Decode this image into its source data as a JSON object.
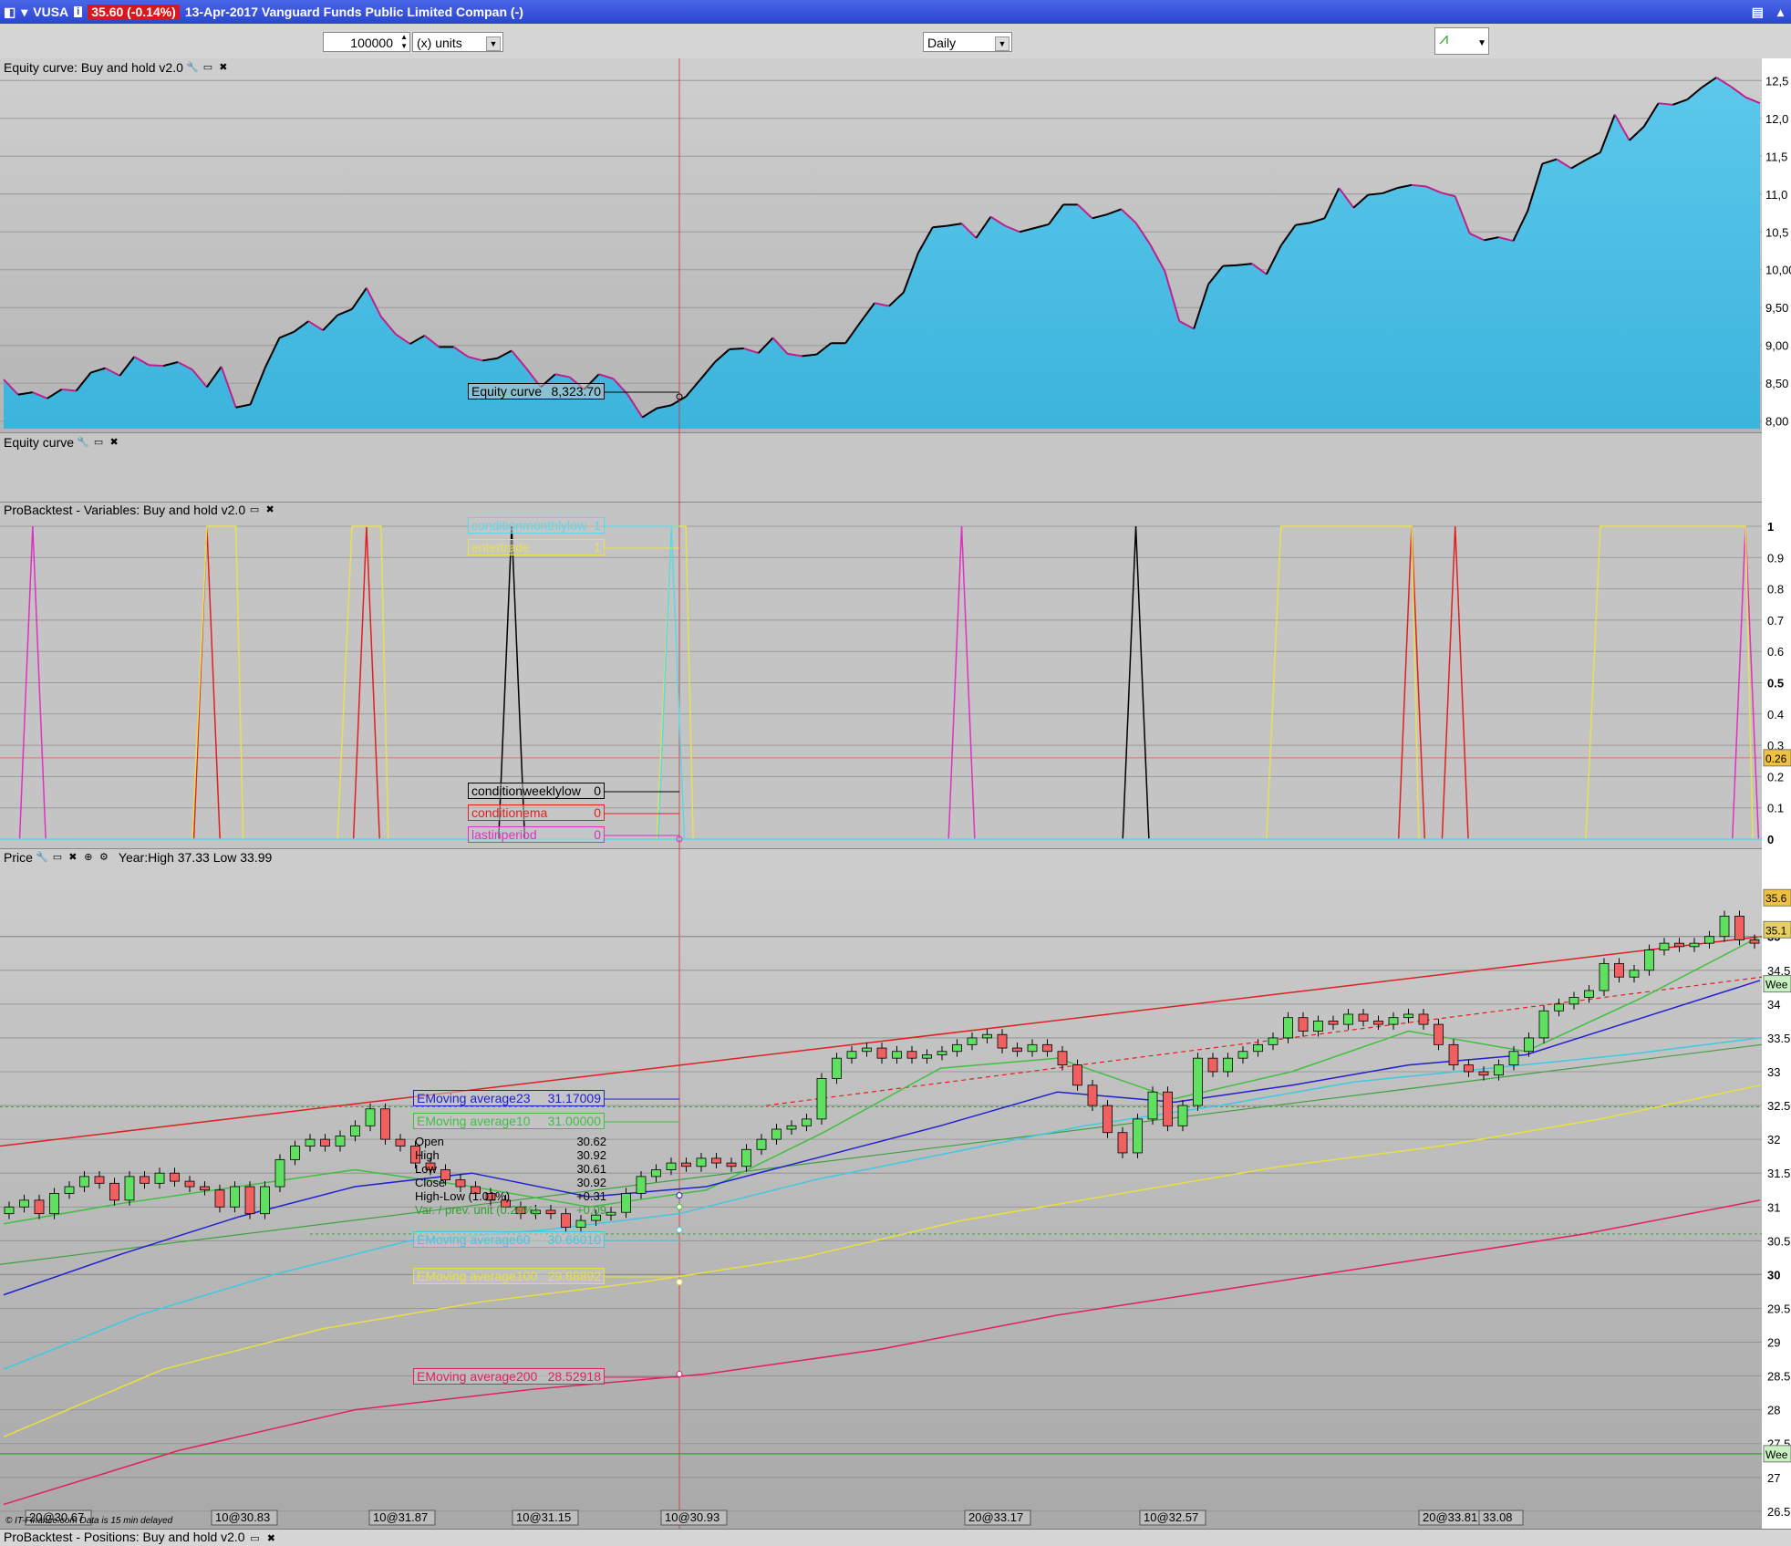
{
  "window": {
    "ticker": "VUSA",
    "price_change": "35.60 (-0.14%)",
    "date_name": "13-Apr-2017 Vanguard Funds Public Limited Compan (-)"
  },
  "toolbar": {
    "quantity": "100000",
    "units": "(x) units",
    "period": "Daily"
  },
  "panels": {
    "equity_title": "Equity curve: Buy and hold v2.0",
    "equity2_title": "Equity curve",
    "vars_title": "ProBacktest - Variables: Buy and hold v2.0",
    "price_title": "Price",
    "price_year": "Year:High 37.33 Low 33.99",
    "positions_title": "ProBacktest - Positions: Buy and hold v2.0",
    "copyright": "© IT-Finance.com  Data is 15 min delayed"
  },
  "labels": {
    "equity_value": {
      "name": "Equity curve",
      "value": "8,323.70"
    },
    "vars": [
      {
        "name": "conditionmonthlylow",
        "value": "1",
        "color": "#5ad8e8"
      },
      {
        "name": "entertrade",
        "value": "1",
        "color": "#e8e050"
      },
      {
        "name": "conditionweeklylow",
        "value": "0",
        "color": "#000000"
      },
      {
        "name": "conditionema",
        "value": "0",
        "color": "#e02020"
      },
      {
        "name": "lastinperiod",
        "value": "0",
        "color": "#e030c0"
      }
    ],
    "emas": [
      {
        "name": "EMoving average23",
        "value": "31.17009",
        "color": "#2020d0"
      },
      {
        "name": "EMoving average10",
        "value": "31.00000",
        "color": "#40c040"
      },
      {
        "name": "EMoving average60",
        "value": "30.66010",
        "color": "#40c8e0"
      },
      {
        "name": "EMoving average100",
        "value": "29.88892",
        "color": "#e8e040"
      },
      {
        "name": "EMoving average200",
        "value": "28.52918",
        "color": "#e02060"
      }
    ],
    "ohlc": [
      {
        "k": "Open",
        "v": "30.62"
      },
      {
        "k": "High",
        "v": "30.92"
      },
      {
        "k": "Low",
        "v": "30.61"
      },
      {
        "k": "Close",
        "v": "30.92"
      },
      {
        "k": "High-Low (1.01%)",
        "v": "+0.31"
      },
      {
        "k": "Var. / prev. unit (0.29%)",
        "v": "+0.09"
      }
    ],
    "price_axis_tags": [
      "35.6",
      "35.1",
      "Wee",
      "Wee"
    ],
    "var_axis_tag": "0.26"
  },
  "colors": {
    "equity_fill_top": "#5cc8ec",
    "equity_fill_bottom": "#3cb4dc",
    "equity_line": "#000000",
    "up_candle": "#60e060",
    "down_candle": "#f06060",
    "channel": "#e02020"
  },
  "chart_data": [
    {
      "type": "area",
      "name": "Equity curve",
      "y_ticks": [
        "12,5",
        "12,0",
        "11,5",
        "11,0",
        "10,5",
        "10,00",
        "9,50",
        "9,00",
        "8,50",
        "8,00"
      ],
      "ylim": [
        7900,
        12600
      ],
      "values": [
        8550,
        8350,
        8380,
        8300,
        8420,
        8400,
        8640,
        8700,
        8600,
        8850,
        8740,
        8730,
        8780,
        8680,
        8450,
        8720,
        8180,
        8220,
        8700,
        9100,
        9180,
        9320,
        9200,
        9400,
        9480,
        9760,
        9380,
        9150,
        9020,
        9130,
        8980,
        8980,
        8850,
        8800,
        8830,
        8930,
        8700,
        8450,
        8620,
        8580,
        8420,
        8620,
        8560,
        8350,
        8050,
        8170,
        8210,
        8323.7,
        8550,
        8780,
        8950,
        8960,
        8900,
        9100,
        8890,
        8860,
        8880,
        9030,
        9030,
        9300,
        9560,
        9520,
        9700,
        10220,
        10560,
        10580,
        10610,
        10420,
        10700,
        10580,
        10500,
        10550,
        10600,
        10860,
        10860,
        10680,
        10730,
        10800,
        10620,
        10330,
        9980,
        9320,
        9220,
        9810,
        10050,
        10060,
        10080,
        9940,
        10320,
        10590,
        10620,
        10680,
        11080,
        10820,
        10990,
        11010,
        11080,
        11120,
        11100,
        11020,
        10970,
        10480,
        10390,
        10430,
        10380,
        10780,
        11400,
        11460,
        11340,
        11450,
        11550,
        12050,
        11710,
        11890,
        12200,
        12180,
        12250,
        12410,
        12540,
        12420,
        12280,
        12200
      ]
    },
    {
      "type": "line",
      "name": "ProBacktest Variables",
      "y_ticks": [
        "1",
        "0.9",
        "0.8",
        "0.7",
        "0.6",
        "0.5",
        "0.4",
        "0.3",
        "0.2",
        "0.1",
        "0"
      ],
      "ylim": [
        0,
        1
      ],
      "series": [
        {
          "name": "lastinperiod",
          "spikes": [
            2,
            66,
            120
          ]
        },
        {
          "name": "conditionema",
          "spikes": [
            14,
            25,
            97,
            100
          ]
        },
        {
          "name": "conditionweeklylow",
          "spikes": [
            35,
            78
          ]
        },
        {
          "name": "entertrade",
          "on_ranges": [
            [
              14,
              16
            ],
            [
              24,
              26
            ],
            [
              46,
              47
            ],
            [
              88,
              97
            ],
            [
              110,
              120
            ]
          ]
        },
        {
          "name": "conditionmonthlylow",
          "spikes": [
            46
          ]
        }
      ]
    },
    {
      "type": "candlestick",
      "name": "Price",
      "y_ticks": [
        "35",
        "34.5",
        "34",
        "33.5",
        "33",
        "32.5",
        "32",
        "31.5",
        "31",
        "30.5",
        "30",
        "29.5",
        "29",
        "28.5",
        "28",
        "27.5",
        "27",
        "26.5"
      ],
      "ylim": [
        26.35,
        35.9
      ],
      "x_labels": [
        "20@30.67",
        "10@30.83",
        "10@31.87",
        "10@31.15",
        "10@30.93",
        "20@33.17",
        "10@32.57",
        "20@33.81",
        "33.08"
      ],
      "closes": [
        31.0,
        31.1,
        30.9,
        31.2,
        31.3,
        31.45,
        31.35,
        31.1,
        31.45,
        31.35,
        31.5,
        31.38,
        31.3,
        31.25,
        31.0,
        31.3,
        30.9,
        31.3,
        31.7,
        31.9,
        32.0,
        31.9,
        32.05,
        32.2,
        32.45,
        32.0,
        31.9,
        31.65,
        31.55,
        31.4,
        31.3,
        31.2,
        31.1,
        31.0,
        30.9,
        30.95,
        30.9,
        30.7,
        30.8,
        30.88,
        30.92,
        31.2,
        31.45,
        31.55,
        31.65,
        31.6,
        31.72,
        31.65,
        31.6,
        31.85,
        32.0,
        32.15,
        32.2,
        32.3,
        32.9,
        33.2,
        33.3,
        33.35,
        33.2,
        33.3,
        33.2,
        33.25,
        33.3,
        33.4,
        33.5,
        33.55,
        33.35,
        33.3,
        33.4,
        33.3,
        33.1,
        32.8,
        32.5,
        32.1,
        31.8,
        32.3,
        32.7,
        32.2,
        32.5,
        33.2,
        33.0,
        33.2,
        33.3,
        33.4,
        33.5,
        33.8,
        33.6,
        33.75,
        33.7,
        33.85,
        33.75,
        33.7,
        33.8,
        33.85,
        33.7,
        33.4,
        33.1,
        33.0,
        32.95,
        33.1,
        33.3,
        33.5,
        33.9,
        34.0,
        34.1,
        34.2,
        34.6,
        34.4,
        34.5,
        34.8,
        34.9,
        34.85,
        34.9,
        35.0,
        35.3,
        34.95,
        34.9
      ],
      "emas": [
        {
          "name": "EMoving average10",
          "values": [
            30.75,
            31.05,
            31.3,
            31.55,
            31.3,
            31.0,
            31.25,
            32.1,
            33.05,
            33.2,
            32.6,
            33.0,
            33.6,
            33.3,
            34.1,
            35.0
          ]
        },
        {
          "name": "EMoving average23",
          "values": [
            29.7,
            30.3,
            30.85,
            31.3,
            31.5,
            31.15,
            31.3,
            31.75,
            32.2,
            32.7,
            32.55,
            32.8,
            33.1,
            33.25,
            33.8,
            34.35
          ]
        },
        {
          "name": "EMoving average60",
          "values": [
            28.6,
            29.4,
            30.0,
            30.5,
            30.66,
            30.9,
            31.4,
            31.8,
            32.2,
            32.5,
            32.85,
            33.05,
            33.25,
            33.5
          ]
        },
        {
          "name": "EMoving average100",
          "values": [
            27.6,
            28.6,
            29.2,
            29.6,
            29.89,
            30.25,
            30.8,
            31.2,
            31.6,
            31.9,
            32.3,
            32.8
          ]
        },
        {
          "name": "EMoving average200",
          "values": [
            26.6,
            27.4,
            28.0,
            28.3,
            28.53,
            28.9,
            29.4,
            29.8,
            30.2,
            30.6,
            31.1
          ]
        }
      ],
      "channel_upper": [
        31.9,
        35.0
      ],
      "channel_lower": [
        32.5,
        34.4
      ],
      "weekly_lines": [
        35.2,
        27.35
      ]
    }
  ]
}
